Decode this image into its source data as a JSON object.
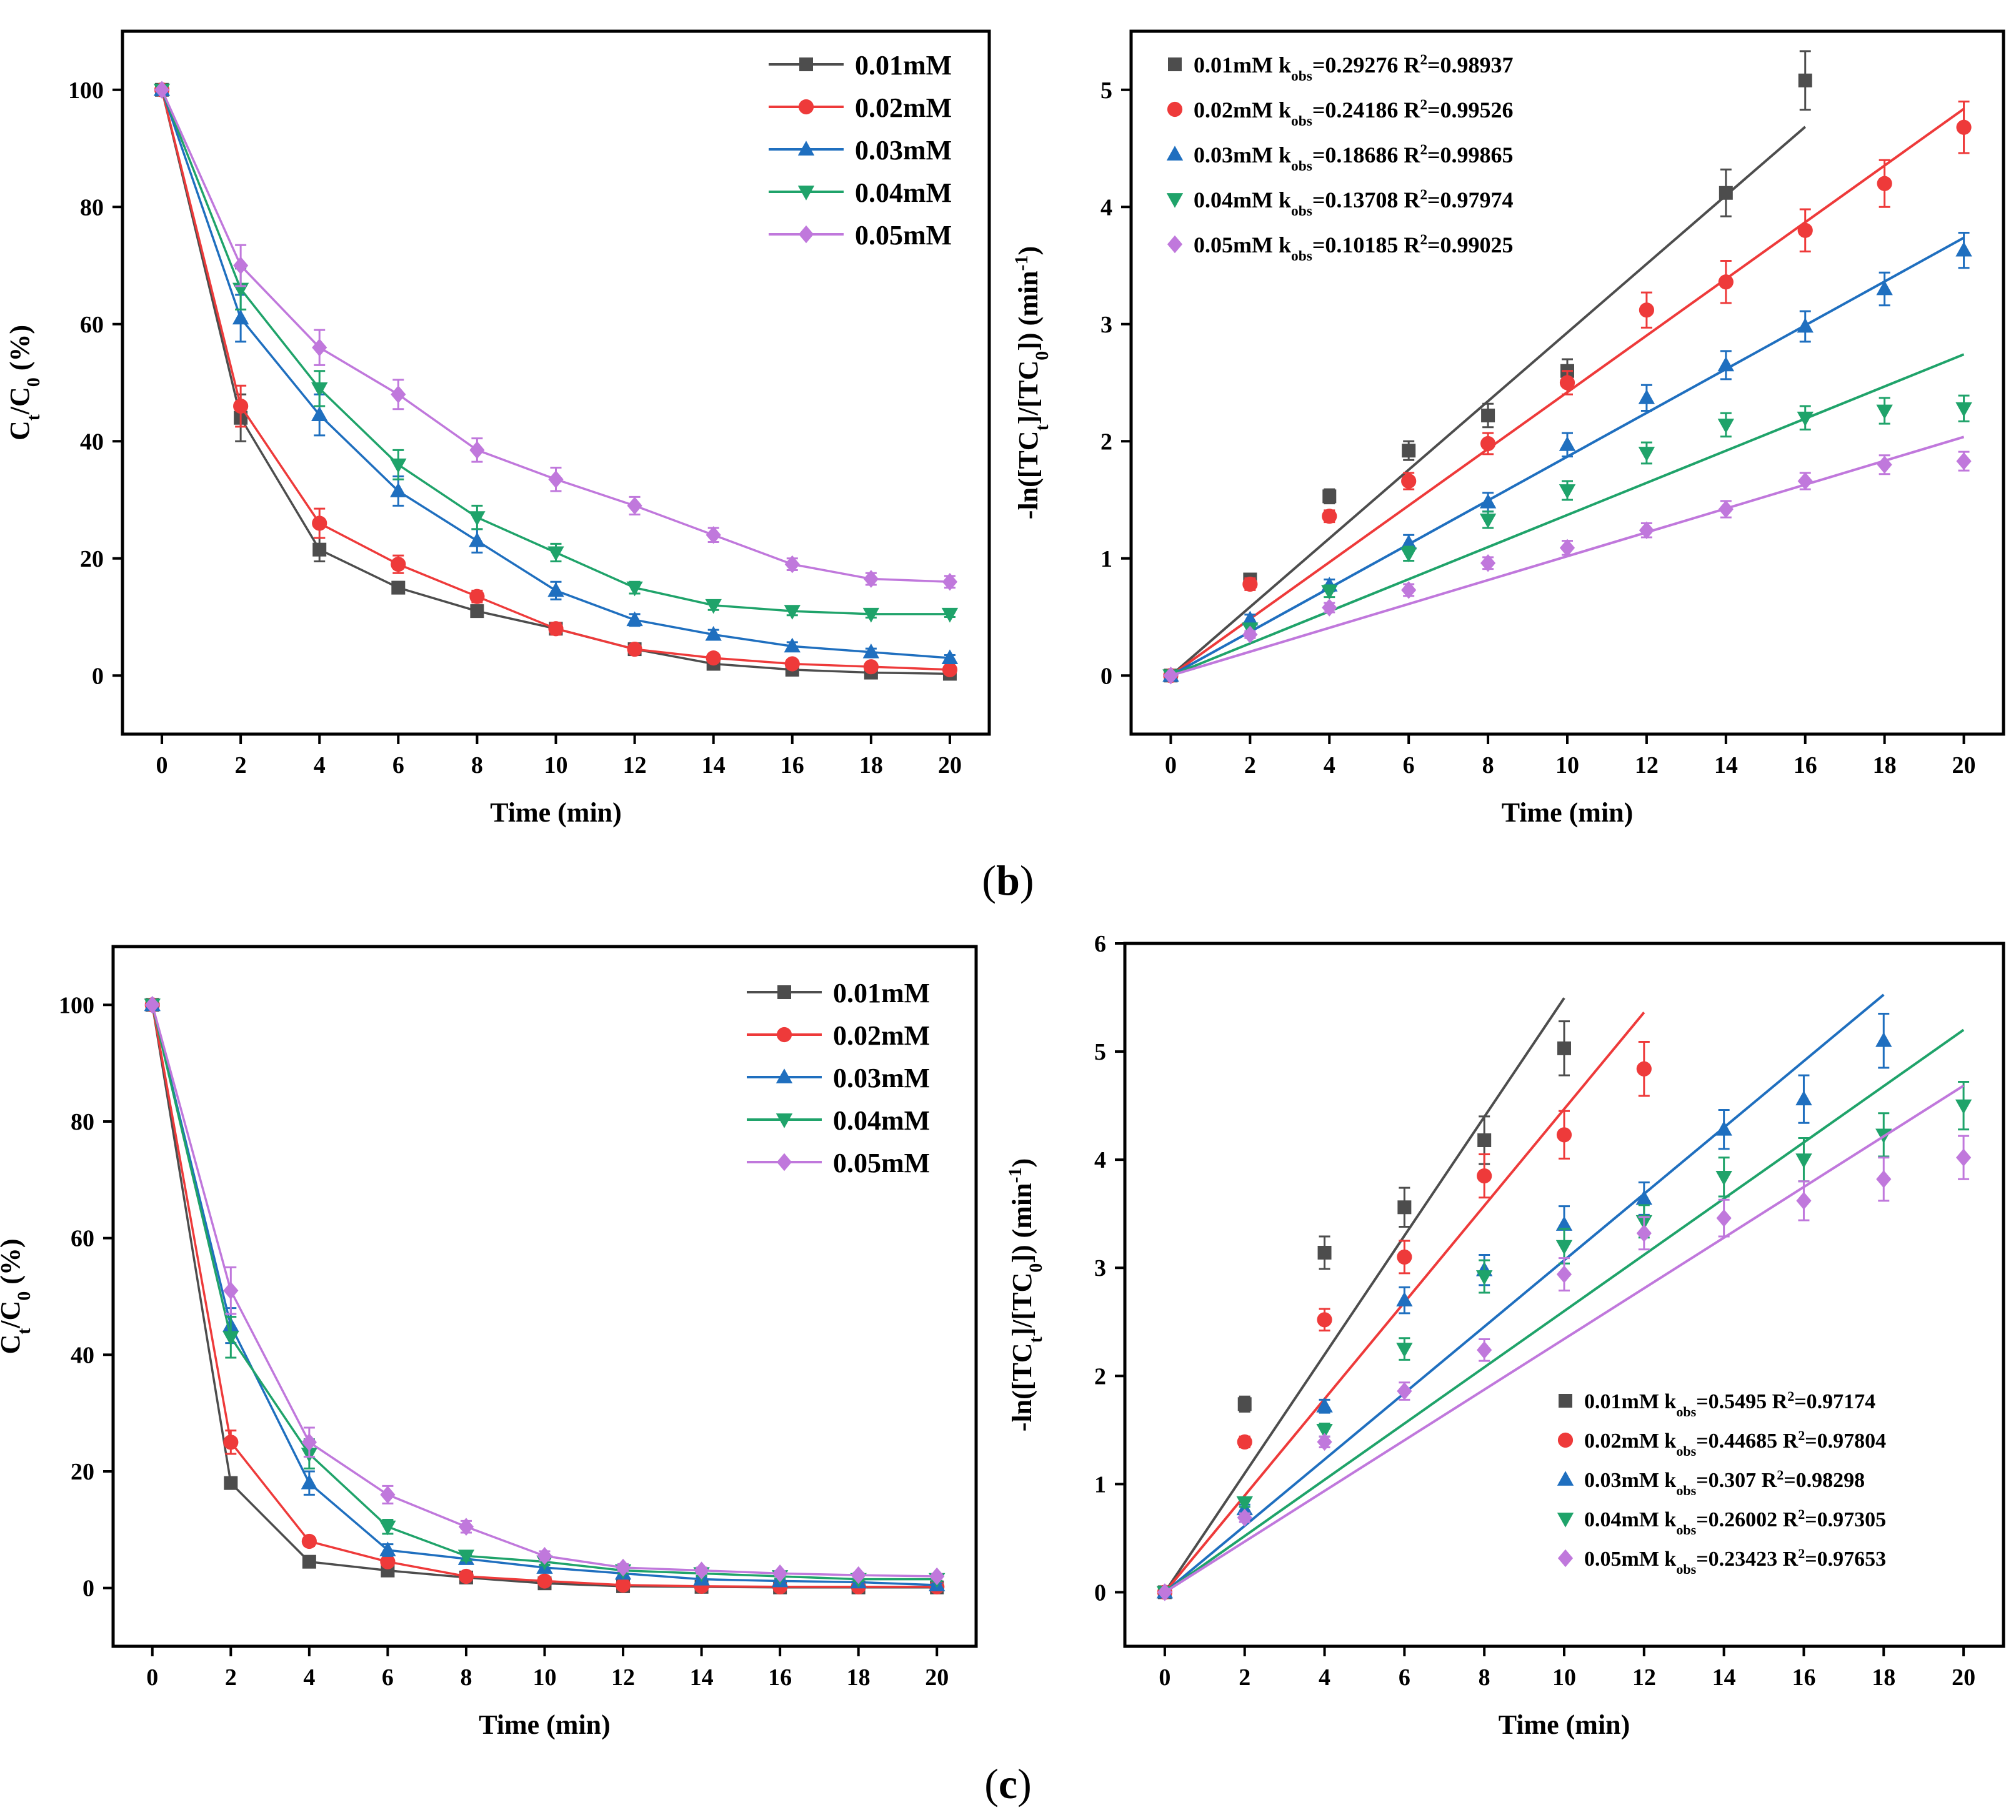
{
  "figure": {
    "panel_labels": [
      {
        "letter": "b",
        "open": "(",
        "close": ")"
      },
      {
        "letter": "c",
        "open": "(",
        "close": ")"
      }
    ]
  },
  "series_colors": [
    "#4d4d4d",
    "#ee3a3a",
    "#1f6fbf",
    "#1fa36a",
    "#c078dc"
  ],
  "series_markers": [
    "square",
    "circle",
    "triangle-up",
    "triangle-down",
    "diamond"
  ],
  "chart_data": [
    {
      "id": "b-left",
      "type": "line",
      "xlabel": "Time (min)",
      "ylabel": "Ct/C0 (%)",
      "ylabel_parts": {
        "a": "C",
        "a_sub": "t",
        "b": "/C",
        "b_sub": "0",
        "c": " (%)"
      },
      "xlim": [
        -1,
        21
      ],
      "ylim": [
        -10,
        110
      ],
      "xticks": [
        0,
        2,
        4,
        6,
        8,
        10,
        12,
        14,
        16,
        18,
        20
      ],
      "yticks": [
        0,
        20,
        40,
        60,
        80,
        100
      ],
      "legend_position": "top-right",
      "x": [
        0,
        2,
        4,
        6,
        8,
        10,
        12,
        14,
        16,
        18,
        20
      ],
      "series": [
        {
          "name": "0.01mM",
          "values": [
            100,
            44,
            21.5,
            15,
            11,
            8,
            4.5,
            2,
            1,
            0.5,
            0.3
          ],
          "errors": [
            0,
            4,
            2,
            1,
            1,
            1,
            0.5,
            0.5,
            0.5,
            0.3,
            0.3
          ]
        },
        {
          "name": "0.02mM",
          "values": [
            100,
            46,
            26,
            19,
            13.5,
            8,
            4.5,
            3,
            2,
            1.5,
            1
          ],
          "errors": [
            0,
            3.5,
            2.5,
            1.5,
            1,
            1,
            0.5,
            0.5,
            0.5,
            0.4,
            0.4
          ]
        },
        {
          "name": "0.03mM",
          "values": [
            100,
            61,
            44.5,
            31.5,
            23,
            14.5,
            9.5,
            7,
            5,
            4,
            3
          ],
          "errors": [
            0,
            4,
            3.5,
            2.5,
            2,
            1.5,
            1,
            0.8,
            0.7,
            0.6,
            0.5
          ]
        },
        {
          "name": "0.04mM",
          "values": [
            100,
            66,
            49,
            36,
            27,
            21,
            15,
            12,
            11,
            10.5,
            10.5
          ],
          "errors": [
            0,
            3.5,
            3,
            2.5,
            2,
            1.5,
            1,
            0.8,
            0.7,
            0.6,
            0.5
          ]
        },
        {
          "name": "0.05mM",
          "values": [
            100,
            70,
            56,
            48,
            38.5,
            33.5,
            29,
            24,
            19,
            16.5,
            16
          ],
          "errors": [
            0,
            3.5,
            3,
            2.5,
            2,
            2,
            1.5,
            1.2,
            1,
            1,
            1
          ]
        }
      ]
    },
    {
      "id": "b-right",
      "type": "scatter",
      "xlabel": "Time (min)",
      "ylabel": "-ln([TCt]/[TC0]) (min-1)",
      "ylabel_parts": {
        "a": "-ln([TC",
        "a_sub": "t",
        "b": "]/[TC",
        "b_sub": "0",
        "c": "]) (min",
        "c_sup": "-1",
        "d": ")"
      },
      "xlim": [
        -1,
        21
      ],
      "ylim": [
        -0.5,
        5.5
      ],
      "xticks": [
        0,
        2,
        4,
        6,
        8,
        10,
        12,
        14,
        16,
        18,
        20
      ],
      "yticks": [
        0,
        1,
        2,
        3,
        4,
        5
      ],
      "legend_position": "top-left",
      "x": [
        0,
        2,
        4,
        6,
        8,
        10,
        12,
        14,
        16,
        18,
        20
      ],
      "series": [
        {
          "name": "0.01mM",
          "k_obs": "0.29276",
          "r2": "0.98937",
          "fit_slope": 0.29276,
          "fit_xmax": 16,
          "x": [
            0,
            2,
            4,
            6,
            8,
            10,
            14,
            16
          ],
          "values": [
            0,
            0.82,
            1.53,
            1.92,
            2.22,
            2.6,
            4.12,
            5.08
          ],
          "errors": [
            0,
            0.05,
            0.06,
            0.08,
            0.1,
            0.1,
            0.2,
            0.25
          ]
        },
        {
          "name": "0.02mM",
          "k_obs": "0.24186",
          "r2": "0.99526",
          "fit_slope": 0.24186,
          "fit_xmax": 20,
          "x": [
            0,
            2,
            4,
            6,
            8,
            10,
            12,
            14,
            16,
            18,
            20
          ],
          "values": [
            0,
            0.78,
            1.36,
            1.66,
            1.98,
            2.5,
            3.12,
            3.36,
            3.8,
            4.2,
            4.68
          ],
          "errors": [
            0,
            0.05,
            0.05,
            0.07,
            0.09,
            0.1,
            0.15,
            0.18,
            0.18,
            0.2,
            0.22
          ]
        },
        {
          "name": "0.03mM",
          "k_obs": "0.18686",
          "r2": "0.99865",
          "fit_slope": 0.18686,
          "fit_xmax": 20,
          "x": [
            0,
            2,
            4,
            6,
            8,
            10,
            12,
            14,
            16,
            18,
            20
          ],
          "values": [
            0,
            0.48,
            0.77,
            1.13,
            1.48,
            1.97,
            2.37,
            2.65,
            2.98,
            3.3,
            3.63
          ],
          "errors": [
            0,
            0.04,
            0.05,
            0.07,
            0.08,
            0.1,
            0.11,
            0.12,
            0.13,
            0.14,
            0.15
          ]
        },
        {
          "name": "0.04mM",
          "k_obs": "0.13708",
          "r2": "0.97974",
          "fit_slope": 0.13708,
          "fit_xmax": 20,
          "x": [
            0,
            2,
            4,
            6,
            8,
            10,
            12,
            14,
            16,
            18,
            20
          ],
          "values": [
            0,
            0.4,
            0.72,
            1.04,
            1.33,
            1.58,
            1.9,
            2.14,
            2.2,
            2.26,
            2.28
          ],
          "errors": [
            0,
            0.04,
            0.05,
            0.06,
            0.07,
            0.08,
            0.09,
            0.1,
            0.1,
            0.11,
            0.11
          ]
        },
        {
          "name": "0.05mM",
          "k_obs": "0.10185",
          "r2": "0.99025",
          "fit_slope": 0.10185,
          "fit_xmax": 20,
          "x": [
            0,
            2,
            4,
            6,
            8,
            10,
            12,
            14,
            16,
            18,
            20
          ],
          "values": [
            0,
            0.35,
            0.58,
            0.73,
            0.96,
            1.09,
            1.24,
            1.42,
            1.66,
            1.8,
            1.83
          ],
          "errors": [
            0,
            0.03,
            0.04,
            0.05,
            0.05,
            0.06,
            0.06,
            0.07,
            0.07,
            0.08,
            0.08
          ]
        }
      ]
    },
    {
      "id": "c-left",
      "type": "line",
      "xlabel": "Time (min)",
      "ylabel": "Ct/C0 (%)",
      "ylabel_parts": {
        "a": "C",
        "a_sub": "t",
        "b": "/C",
        "b_sub": "0",
        "c": " (%)"
      },
      "xlim": [
        -1,
        21
      ],
      "ylim": [
        -10,
        110
      ],
      "xticks": [
        0,
        2,
        4,
        6,
        8,
        10,
        12,
        14,
        16,
        18,
        20
      ],
      "yticks": [
        0,
        20,
        40,
        60,
        80,
        100
      ],
      "legend_position": "top-right",
      "x": [
        0,
        2,
        4,
        6,
        8,
        10,
        12,
        14,
        16,
        18,
        20
      ],
      "series": [
        {
          "name": "0.01mM",
          "values": [
            100,
            18,
            4.5,
            3,
            1.8,
            0.8,
            0.3,
            0.2,
            0.1,
            0.1,
            0.1
          ],
          "errors": [
            0,
            1,
            0.5,
            0.4,
            0.3,
            0.2,
            0.2,
            0.1,
            0.1,
            0.1,
            0.1
          ]
        },
        {
          "name": "0.02mM",
          "values": [
            100,
            25,
            8,
            4.5,
            2,
            1.2,
            0.5,
            0.3,
            0.2,
            0.2,
            0.2
          ],
          "errors": [
            0,
            2,
            0.8,
            0.5,
            0.4,
            0.3,
            0.2,
            0.2,
            0.2,
            0.2,
            0.2
          ]
        },
        {
          "name": "0.03mM",
          "values": [
            100,
            45,
            18,
            6.5,
            5,
            3.5,
            2.5,
            1.5,
            1.2,
            1,
            0.5
          ],
          "errors": [
            0,
            3,
            2,
            1,
            0.6,
            0.5,
            0.4,
            0.3,
            0.3,
            0.3,
            0.3
          ]
        },
        {
          "name": "0.04mM",
          "values": [
            100,
            43,
            23,
            10.5,
            5.5,
            4.5,
            3,
            2.5,
            2,
            1.5,
            1.5
          ],
          "errors": [
            0,
            3.5,
            2.5,
            1.2,
            0.8,
            0.6,
            0.5,
            0.4,
            0.4,
            0.3,
            0.3
          ]
        },
        {
          "name": "0.05mM",
          "values": [
            100,
            51,
            25,
            16,
            10.5,
            5.5,
            3.5,
            3,
            2.5,
            2.2,
            2
          ],
          "errors": [
            0,
            4,
            2.5,
            1.5,
            1,
            0.8,
            0.6,
            0.5,
            0.4,
            0.4,
            0.4
          ]
        }
      ]
    },
    {
      "id": "c-right",
      "type": "scatter",
      "xlabel": "Time (min)",
      "ylabel": "-ln([TCt]/[TC0]) (min-1)",
      "ylabel_parts": {
        "a": "-ln([TC",
        "a_sub": "t",
        "b": "]/[TC",
        "b_sub": "0",
        "c": "]) (min",
        "c_sup": "-1",
        "d": ")"
      },
      "xlim": [
        -1,
        21
      ],
      "ylim": [
        -0.5,
        6
      ],
      "xticks": [
        0,
        2,
        4,
        6,
        8,
        10,
        12,
        14,
        16,
        18,
        20
      ],
      "yticks": [
        0,
        1,
        2,
        3,
        4,
        5,
        6
      ],
      "legend_position": "bottom-right",
      "x": [
        0,
        2,
        4,
        6,
        8,
        10,
        12,
        14,
        16,
        18,
        20
      ],
      "series": [
        {
          "name": "0.01mM",
          "k_obs": "0.5495",
          "r2": "0.97174",
          "fit_slope": 0.5495,
          "fit_xmax": 10,
          "x": [
            0,
            2,
            4,
            6,
            8,
            10
          ],
          "values": [
            0,
            1.74,
            3.14,
            3.56,
            4.18,
            5.03
          ],
          "errors": [
            0,
            0.07,
            0.15,
            0.18,
            0.22,
            0.25
          ]
        },
        {
          "name": "0.02mM",
          "k_obs": "0.44685",
          "r2": "0.97804",
          "fit_slope": 0.44685,
          "fit_xmax": 12,
          "x": [
            0,
            2,
            4,
            6,
            8,
            10,
            12
          ],
          "values": [
            0,
            1.39,
            2.52,
            3.1,
            3.85,
            4.23,
            4.84
          ],
          "errors": [
            0,
            0.05,
            0.1,
            0.15,
            0.2,
            0.22,
            0.25
          ]
        },
        {
          "name": "0.03mM",
          "k_obs": "0.307",
          "r2": "0.98298",
          "fit_slope": 0.307,
          "fit_xmax": 18,
          "x": [
            0,
            2,
            4,
            6,
            8,
            10,
            12,
            14,
            16,
            18
          ],
          "values": [
            0,
            0.77,
            1.72,
            2.7,
            2.98,
            3.4,
            3.64,
            4.28,
            4.56,
            5.1
          ],
          "errors": [
            0,
            0.04,
            0.06,
            0.12,
            0.14,
            0.17,
            0.15,
            0.18,
            0.22,
            0.25
          ]
        },
        {
          "name": "0.04mM",
          "k_obs": "0.26002",
          "r2": "0.97305",
          "fit_slope": 0.26002,
          "fit_xmax": 20,
          "x": [
            0,
            2,
            4,
            6,
            8,
            10,
            12,
            14,
            16,
            18,
            20
          ],
          "values": [
            0,
            0.83,
            1.5,
            2.25,
            2.92,
            3.2,
            3.43,
            3.84,
            4.0,
            4.23,
            4.5
          ],
          "errors": [
            0,
            0.04,
            0.06,
            0.1,
            0.15,
            0.16,
            0.15,
            0.18,
            0.2,
            0.2,
            0.22
          ]
        },
        {
          "name": "0.05mM",
          "k_obs": "0.23423",
          "r2": "0.97653",
          "fit_slope": 0.23423,
          "fit_xmax": 20,
          "x": [
            0,
            2,
            4,
            6,
            8,
            10,
            12,
            14,
            16,
            18,
            20
          ],
          "values": [
            0,
            0.69,
            1.39,
            1.86,
            2.24,
            2.94,
            3.32,
            3.46,
            3.62,
            3.82,
            4.02
          ],
          "errors": [
            0,
            0.04,
            0.05,
            0.08,
            0.1,
            0.15,
            0.15,
            0.17,
            0.18,
            0.2,
            0.2
          ]
        }
      ]
    }
  ]
}
